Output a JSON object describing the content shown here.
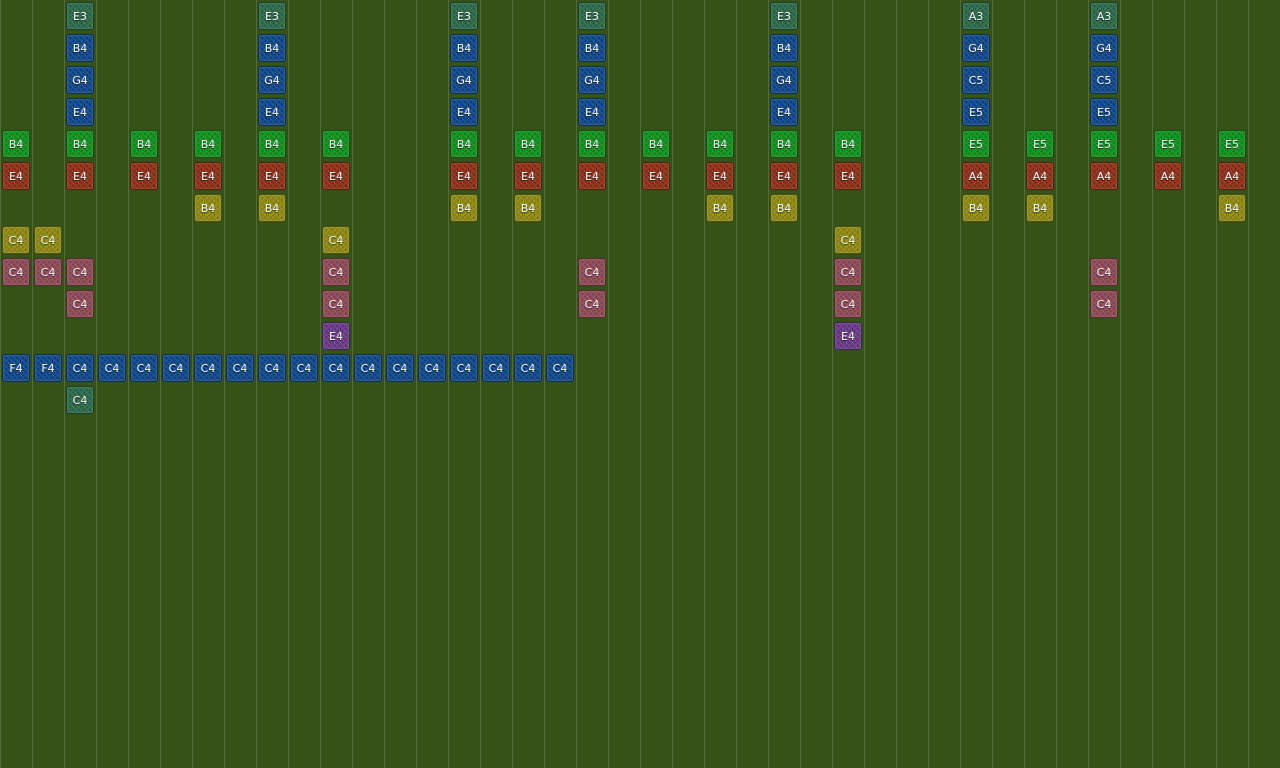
{
  "palette": {
    "teal": "#2e6a4a",
    "blue": "#12498c",
    "green": "#13911f",
    "red": "#8e311a",
    "yellow": "#8f8a14",
    "pink": "#8e4b58",
    "purple": "#6a3c86",
    "background": "#365317"
  },
  "notes": [
    {
      "label": "E3",
      "color": "teal",
      "col": 2,
      "row": 0
    },
    {
      "label": "B4",
      "color": "blue",
      "col": 2,
      "row": 1
    },
    {
      "label": "G4",
      "color": "blue",
      "col": 2,
      "row": 2
    },
    {
      "label": "E4",
      "color": "blue",
      "col": 2,
      "row": 3
    },
    {
      "label": "E3",
      "color": "teal",
      "col": 8,
      "row": 0
    },
    {
      "label": "B4",
      "color": "blue",
      "col": 8,
      "row": 1
    },
    {
      "label": "G4",
      "color": "blue",
      "col": 8,
      "row": 2
    },
    {
      "label": "E4",
      "color": "blue",
      "col": 8,
      "row": 3
    },
    {
      "label": "E3",
      "color": "teal",
      "col": 14,
      "row": 0
    },
    {
      "label": "B4",
      "color": "blue",
      "col": 14,
      "row": 1
    },
    {
      "label": "G4",
      "color": "blue",
      "col": 14,
      "row": 2
    },
    {
      "label": "E4",
      "color": "blue",
      "col": 14,
      "row": 3
    },
    {
      "label": "E3",
      "color": "teal",
      "col": 18,
      "row": 0
    },
    {
      "label": "B4",
      "color": "blue",
      "col": 18,
      "row": 1
    },
    {
      "label": "G4",
      "color": "blue",
      "col": 18,
      "row": 2
    },
    {
      "label": "E4",
      "color": "blue",
      "col": 18,
      "row": 3
    },
    {
      "label": "E3",
      "color": "teal",
      "col": 24,
      "row": 0
    },
    {
      "label": "B4",
      "color": "blue",
      "col": 24,
      "row": 1
    },
    {
      "label": "G4",
      "color": "blue",
      "col": 24,
      "row": 2
    },
    {
      "label": "E4",
      "color": "blue",
      "col": 24,
      "row": 3
    },
    {
      "label": "A3",
      "color": "teal",
      "col": 30,
      "row": 0
    },
    {
      "label": "G4",
      "color": "blue",
      "col": 30,
      "row": 1
    },
    {
      "label": "C5",
      "color": "blue",
      "col": 30,
      "row": 2
    },
    {
      "label": "E5",
      "color": "blue",
      "col": 30,
      "row": 3
    },
    {
      "label": "A3",
      "color": "teal",
      "col": 34,
      "row": 0
    },
    {
      "label": "G4",
      "color": "blue",
      "col": 34,
      "row": 1
    },
    {
      "label": "C5",
      "color": "blue",
      "col": 34,
      "row": 2
    },
    {
      "label": "E5",
      "color": "blue",
      "col": 34,
      "row": 3
    },
    {
      "label": "B4",
      "color": "green",
      "col": 0,
      "row": 4
    },
    {
      "label": "B4",
      "color": "green",
      "col": 2,
      "row": 4
    },
    {
      "label": "B4",
      "color": "green",
      "col": 4,
      "row": 4
    },
    {
      "label": "B4",
      "color": "green",
      "col": 6,
      "row": 4
    },
    {
      "label": "B4",
      "color": "green",
      "col": 8,
      "row": 4
    },
    {
      "label": "B4",
      "color": "green",
      "col": 10,
      "row": 4
    },
    {
      "label": "B4",
      "color": "green",
      "col": 14,
      "row": 4
    },
    {
      "label": "B4",
      "color": "green",
      "col": 16,
      "row": 4
    },
    {
      "label": "B4",
      "color": "green",
      "col": 18,
      "row": 4
    },
    {
      "label": "B4",
      "color": "green",
      "col": 20,
      "row": 4
    },
    {
      "label": "B4",
      "color": "green",
      "col": 22,
      "row": 4
    },
    {
      "label": "B4",
      "color": "green",
      "col": 24,
      "row": 4
    },
    {
      "label": "B4",
      "color": "green",
      "col": 26,
      "row": 4
    },
    {
      "label": "E5",
      "color": "green",
      "col": 30,
      "row": 4
    },
    {
      "label": "E5",
      "color": "green",
      "col": 32,
      "row": 4
    },
    {
      "label": "E5",
      "color": "green",
      "col": 34,
      "row": 4
    },
    {
      "label": "E5",
      "color": "green",
      "col": 36,
      "row": 4
    },
    {
      "label": "E5",
      "color": "green",
      "col": 38,
      "row": 4
    },
    {
      "label": "E4",
      "color": "red",
      "col": 0,
      "row": 5
    },
    {
      "label": "E4",
      "color": "red",
      "col": 2,
      "row": 5
    },
    {
      "label": "E4",
      "color": "red",
      "col": 4,
      "row": 5
    },
    {
      "label": "E4",
      "color": "red",
      "col": 6,
      "row": 5
    },
    {
      "label": "E4",
      "color": "red",
      "col": 8,
      "row": 5
    },
    {
      "label": "E4",
      "color": "red",
      "col": 10,
      "row": 5
    },
    {
      "label": "E4",
      "color": "red",
      "col": 14,
      "row": 5
    },
    {
      "label": "E4",
      "color": "red",
      "col": 16,
      "row": 5
    },
    {
      "label": "E4",
      "color": "red",
      "col": 18,
      "row": 5
    },
    {
      "label": "E4",
      "color": "red",
      "col": 20,
      "row": 5
    },
    {
      "label": "E4",
      "color": "red",
      "col": 22,
      "row": 5
    },
    {
      "label": "E4",
      "color": "red",
      "col": 24,
      "row": 5
    },
    {
      "label": "E4",
      "color": "red",
      "col": 26,
      "row": 5
    },
    {
      "label": "A4",
      "color": "red",
      "col": 30,
      "row": 5
    },
    {
      "label": "A4",
      "color": "red",
      "col": 32,
      "row": 5
    },
    {
      "label": "A4",
      "color": "red",
      "col": 34,
      "row": 5
    },
    {
      "label": "A4",
      "color": "red",
      "col": 36,
      "row": 5
    },
    {
      "label": "A4",
      "color": "red",
      "col": 38,
      "row": 5
    },
    {
      "label": "B4",
      "color": "yellow",
      "col": 6,
      "row": 6
    },
    {
      "label": "B4",
      "color": "yellow",
      "col": 8,
      "row": 6
    },
    {
      "label": "B4",
      "color": "yellow",
      "col": 14,
      "row": 6
    },
    {
      "label": "B4",
      "color": "yellow",
      "col": 16,
      "row": 6
    },
    {
      "label": "B4",
      "color": "yellow",
      "col": 22,
      "row": 6
    },
    {
      "label": "B4",
      "color": "yellow",
      "col": 24,
      "row": 6
    },
    {
      "label": "B4",
      "color": "yellow",
      "col": 30,
      "row": 6
    },
    {
      "label": "B4",
      "color": "yellow",
      "col": 32,
      "row": 6
    },
    {
      "label": "B4",
      "color": "yellow",
      "col": 38,
      "row": 6
    },
    {
      "label": "C4",
      "color": "yellow",
      "col": 0,
      "row": 7
    },
    {
      "label": "C4",
      "color": "yellow",
      "col": 1,
      "row": 7
    },
    {
      "label": "C4",
      "color": "yellow",
      "col": 10,
      "row": 7
    },
    {
      "label": "C4",
      "color": "yellow",
      "col": 26,
      "row": 7
    },
    {
      "label": "C4",
      "color": "pink",
      "col": 0,
      "row": 8
    },
    {
      "label": "C4",
      "color": "pink",
      "col": 1,
      "row": 8
    },
    {
      "label": "C4",
      "color": "pink",
      "col": 2,
      "row": 8
    },
    {
      "label": "C4",
      "color": "pink",
      "col": 10,
      "row": 8
    },
    {
      "label": "C4",
      "color": "pink",
      "col": 18,
      "row": 8
    },
    {
      "label": "C4",
      "color": "pink",
      "col": 26,
      "row": 8
    },
    {
      "label": "C4",
      "color": "pink",
      "col": 34,
      "row": 8
    },
    {
      "label": "C4",
      "color": "pink",
      "col": 2,
      "row": 9
    },
    {
      "label": "C4",
      "color": "pink",
      "col": 10,
      "row": 9
    },
    {
      "label": "C4",
      "color": "pink",
      "col": 18,
      "row": 9
    },
    {
      "label": "C4",
      "color": "pink",
      "col": 26,
      "row": 9
    },
    {
      "label": "C4",
      "color": "pink",
      "col": 34,
      "row": 9
    },
    {
      "label": "E4",
      "color": "purple",
      "col": 10,
      "row": 10
    },
    {
      "label": "E4",
      "color": "purple",
      "col": 26,
      "row": 10
    },
    {
      "label": "F4",
      "color": "blue",
      "col": 0,
      "row": 11
    },
    {
      "label": "F4",
      "color": "blue",
      "col": 1,
      "row": 11
    },
    {
      "label": "C4",
      "color": "blue",
      "col": 2,
      "row": 11
    },
    {
      "label": "C4",
      "color": "blue",
      "col": 3,
      "row": 11
    },
    {
      "label": "C4",
      "color": "blue",
      "col": 4,
      "row": 11
    },
    {
      "label": "C4",
      "color": "blue",
      "col": 5,
      "row": 11
    },
    {
      "label": "C4",
      "color": "blue",
      "col": 6,
      "row": 11
    },
    {
      "label": "C4",
      "color": "blue",
      "col": 7,
      "row": 11
    },
    {
      "label": "C4",
      "color": "blue",
      "col": 8,
      "row": 11
    },
    {
      "label": "C4",
      "color": "blue",
      "col": 9,
      "row": 11
    },
    {
      "label": "C4",
      "color": "blue",
      "col": 10,
      "row": 11
    },
    {
      "label": "C4",
      "color": "blue",
      "col": 11,
      "row": 11
    },
    {
      "label": "C4",
      "color": "blue",
      "col": 12,
      "row": 11
    },
    {
      "label": "C4",
      "color": "blue",
      "col": 13,
      "row": 11
    },
    {
      "label": "C4",
      "color": "blue",
      "col": 14,
      "row": 11
    },
    {
      "label": "C4",
      "color": "blue",
      "col": 15,
      "row": 11
    },
    {
      "label": "C4",
      "color": "blue",
      "col": 16,
      "row": 11
    },
    {
      "label": "C4",
      "color": "blue",
      "col": 17,
      "row": 11
    },
    {
      "label": "C4",
      "color": "teal",
      "col": 2,
      "row": 12
    }
  ]
}
